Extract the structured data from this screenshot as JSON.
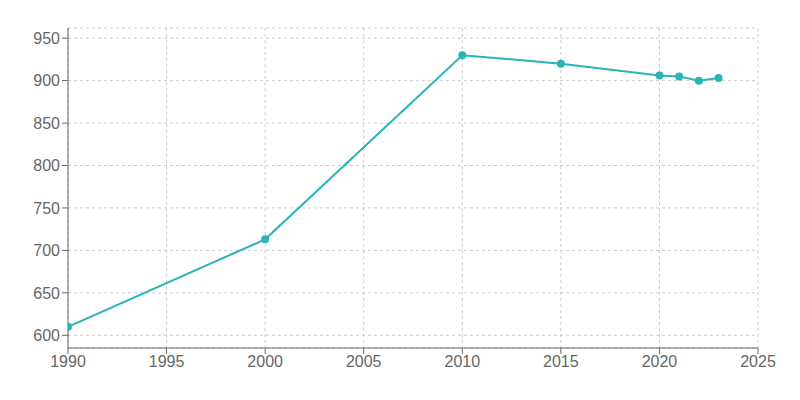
{
  "chart_data": {
    "type": "line",
    "x": [
      1990,
      2000,
      2010,
      2015,
      2020,
      2021,
      2022,
      2023
    ],
    "values": [
      610,
      713,
      930,
      920,
      906,
      905,
      900,
      903
    ],
    "color": "#2ab5b5",
    "marker": "o",
    "xlim": [
      1990,
      2025
    ],
    "xticks": [
      1990,
      1995,
      2000,
      2005,
      2010,
      2015,
      2020,
      2025
    ],
    "ylim": [
      585,
      962
    ],
    "yticks": [
      600,
      650,
      700,
      750,
      800,
      850,
      900,
      950
    ],
    "grid": true
  }
}
